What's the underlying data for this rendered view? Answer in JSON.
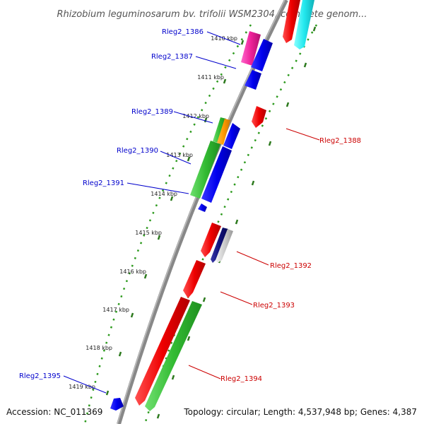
{
  "title": "Rhizobium leguminosarum bv. trifolii WSM2304, complete genom...",
  "accession": "Accession: NC_011369",
  "summary": "Topology: circular; Length: 4,537,948 bp; Genes: 4,387",
  "colors": {
    "background": "#ffffff",
    "backbone": "#888888",
    "tick_major": "#2d7a1e",
    "tick_minor": "#2d9a1e",
    "label_forward": "#0000cc",
    "label_reverse": "#cc0000"
  },
  "kbp_labels": [
    "1410 kbp",
    "1411 kbp",
    "1412 kbp",
    "1413 kbp",
    "1414 kbp",
    "1415 kbp",
    "1416 kbp",
    "1417 kbp",
    "1418 kbp",
    "1419 kbp"
  ],
  "genes": [
    {
      "id": "Rleg2_1386",
      "strand": "forward",
      "color": "#1b1bee"
    },
    {
      "id": "Rleg2_1387",
      "strand": "forward",
      "color": "#1b1bee"
    },
    {
      "id": "Rleg2_1388",
      "strand": "reverse",
      "color": "#ee1b1b"
    },
    {
      "id": "Rleg2_1389",
      "strand": "forward",
      "color": "#1b1bee"
    },
    {
      "id": "Rleg2_1390",
      "strand": "forward",
      "color": "#1b1bee"
    },
    {
      "id": "Rleg2_1391",
      "strand": "forward",
      "color": "#1b1bee"
    },
    {
      "id": "Rleg2_1392",
      "strand": "reverse",
      "color": "#1b1b88"
    },
    {
      "id": "Rleg2_1393",
      "strand": "reverse",
      "color": "#ee1b1b"
    },
    {
      "id": "Rleg2_1394",
      "strand": "reverse",
      "color": "#33cc33"
    },
    {
      "id": "Rleg2_1395",
      "strand": "forward",
      "color": "#1b1bee"
    }
  ]
}
